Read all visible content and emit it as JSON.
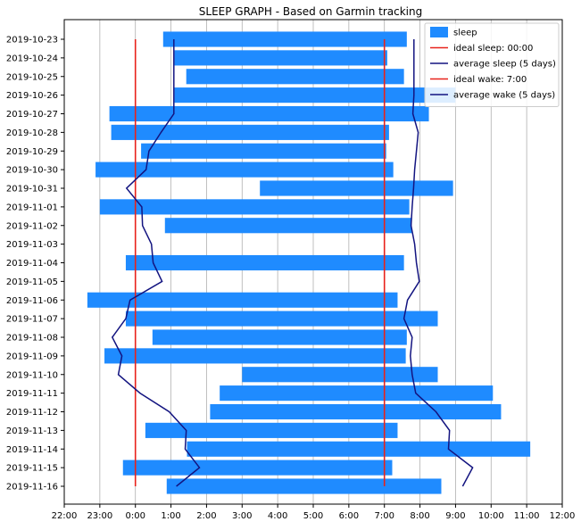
{
  "chart_data": {
    "type": "bar",
    "orientation": "horizontal",
    "title": "SLEEP GRAPH - Based on Garmin tracking",
    "xlabel": "",
    "ylabel": "",
    "x_range_hours_relative_to_midnight": [
      -2,
      12
    ],
    "x_ticks": [
      {
        "h": -2,
        "label": "22:00"
      },
      {
        "h": -1,
        "label": "23:00"
      },
      {
        "h": 0,
        "label": "0:00"
      },
      {
        "h": 1,
        "label": "1:00"
      },
      {
        "h": 2,
        "label": "2:00"
      },
      {
        "h": 3,
        "label": "3:00"
      },
      {
        "h": 4,
        "label": "4:00"
      },
      {
        "h": 5,
        "label": "5:00"
      },
      {
        "h": 6,
        "label": "6:00"
      },
      {
        "h": 7,
        "label": "7:00"
      },
      {
        "h": 8,
        "label": "8:00"
      },
      {
        "h": 9,
        "label": "9:00"
      },
      {
        "h": 10,
        "label": "10:00"
      },
      {
        "h": 11,
        "label": "11:00"
      },
      {
        "h": 12,
        "label": "12:00"
      }
    ],
    "grid": "vertical",
    "legend_position": "top-right",
    "categories": [
      "2019-10-23",
      "2019-10-24",
      "2019-10-25",
      "2019-10-26",
      "2019-10-27",
      "2019-10-28",
      "2019-10-29",
      "2019-10-30",
      "2019-10-31",
      "2019-11-01",
      "2019-11-02",
      "2019-11-03",
      "2019-11-04",
      "2019-11-05",
      "2019-11-06",
      "2019-11-07",
      "2019-11-08",
      "2019-11-09",
      "2019-11-10",
      "2019-11-11",
      "2019-11-12",
      "2019-11-13",
      "2019-11-14",
      "2019-11-15",
      "2019-11-16"
    ],
    "series": [
      {
        "name": "sleep",
        "kind": "bar",
        "color": "#1f8bff",
        "start": [
          0.78,
          1.1,
          1.43,
          1.1,
          -0.73,
          -0.68,
          0.16,
          -1.12,
          3.5,
          -1.0,
          0.83,
          null,
          -0.27,
          null,
          -1.35,
          -0.27,
          0.48,
          -0.87,
          3.0,
          2.37,
          2.1,
          0.28,
          1.45,
          -0.35,
          0.88
        ],
        "end": [
          7.63,
          7.08,
          7.55,
          9.0,
          8.25,
          7.13,
          7.05,
          7.25,
          8.93,
          7.7,
          7.77,
          null,
          7.55,
          null,
          7.37,
          8.5,
          7.63,
          7.6,
          8.5,
          10.05,
          10.28,
          7.37,
          11.1,
          7.22,
          8.6
        ]
      },
      {
        "name": "ideal sleep: 00:00",
        "kind": "vline",
        "color": "#e8221b",
        "value": 0
      },
      {
        "name": "average sleep (5 days)",
        "kind": "line",
        "color": "#131480",
        "values": [
          1.08,
          1.08,
          1.08,
          1.08,
          1.08,
          0.72,
          0.38,
          0.3,
          -0.25,
          0.18,
          0.2,
          0.45,
          0.5,
          0.75,
          -0.15,
          -0.27,
          -0.65,
          -0.38,
          -0.48,
          0.13,
          0.95,
          1.43,
          1.4,
          1.8,
          1.15
        ]
      },
      {
        "name": "ideal wake: 7:00",
        "kind": "vline",
        "color": "#e8221b",
        "value": 7
      },
      {
        "name": "average wake (5 days)",
        "kind": "line",
        "color": "#131480",
        "values": [
          7.83,
          7.83,
          7.83,
          7.83,
          7.8,
          7.95,
          7.9,
          7.85,
          7.82,
          7.78,
          7.75,
          7.85,
          7.9,
          7.98,
          7.65,
          7.55,
          7.78,
          7.73,
          7.78,
          7.88,
          8.45,
          8.83,
          8.8,
          9.48,
          9.2
        ]
      }
    ]
  }
}
